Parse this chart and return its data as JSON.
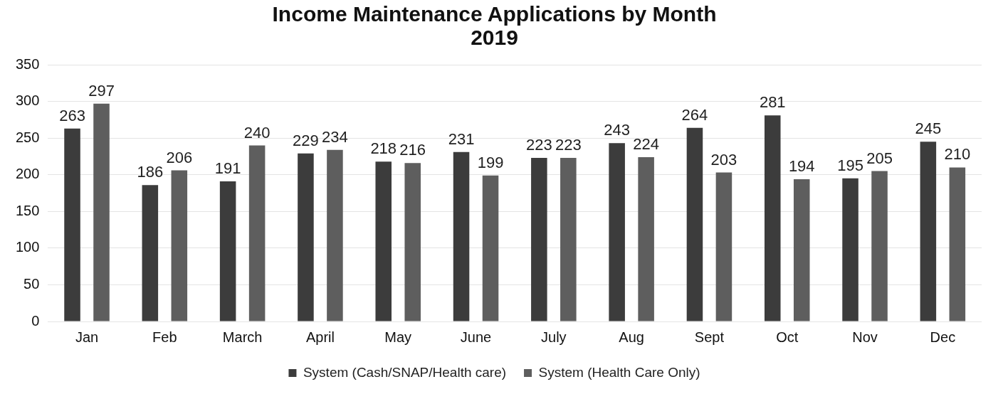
{
  "chart_data": {
    "type": "bar",
    "title": "Income Maintenance Applications by Month\n2019",
    "categories": [
      "Jan",
      "Feb",
      "March",
      "April",
      "May",
      "June",
      "July",
      "Aug",
      "Sept",
      "Oct",
      "Nov",
      "Dec"
    ],
    "series": [
      {
        "name": "System (Cash/SNAP/Health care)",
        "color": "#3c3c3c",
        "values": [
          263,
          186,
          191,
          229,
          218,
          231,
          223,
          243,
          264,
          281,
          195,
          245
        ]
      },
      {
        "name": "System (Health Care Only)",
        "color": "#5e5e5e",
        "values": [
          297,
          206,
          240,
          234,
          216,
          199,
          223,
          224,
          203,
          194,
          205,
          210
        ]
      }
    ],
    "ylim": [
      0,
      350
    ],
    "yticks": [
      0,
      50,
      100,
      150,
      200,
      250,
      300,
      350
    ],
    "grid": "y",
    "legend": "bottom",
    "data_labels": true
  }
}
